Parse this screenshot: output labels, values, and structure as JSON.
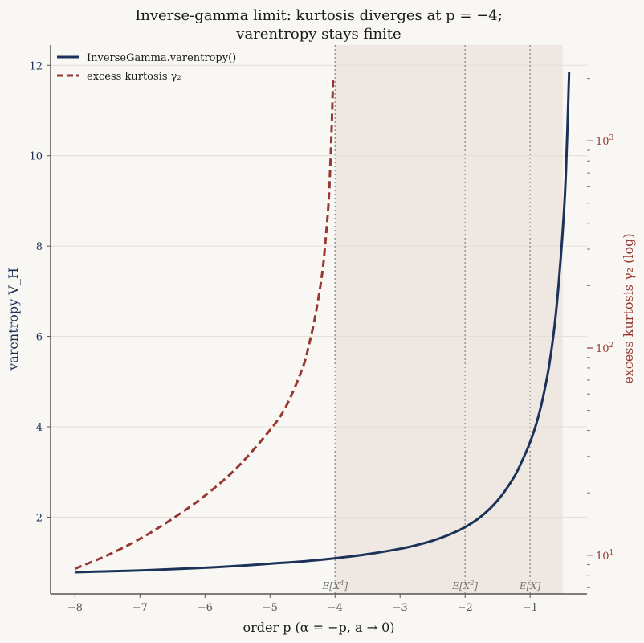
{
  "chart_data": {
    "type": "line",
    "title_line1": "Inverse-gamma limit: kurtosis diverges at p = −4;",
    "title_line2": "varentropy stays finite",
    "xlabel": "order p   (α = −p,   a → 0)",
    "ylabel_left": "varentropy V_H",
    "ylabel_right": "excess kurtosis γ₂  (log)",
    "xlim": [
      -8.375,
      -0.125
    ],
    "ylim_left": [
      0.3,
      12.45
    ],
    "ylim_right_log": [
      6.5,
      2900
    ],
    "x_ticks": [
      -8,
      -7,
      -6,
      -5,
      -4,
      -3,
      -2,
      -1
    ],
    "x_tick_labels": [
      "−8",
      "−7",
      "−6",
      "−5",
      "−4",
      "−3",
      "−2",
      "−1"
    ],
    "y_left_ticks": [
      2,
      4,
      6,
      8,
      10,
      12
    ],
    "y_left_tick_labels": [
      "2",
      "4",
      "6",
      "8",
      "10",
      "12"
    ],
    "y_right_major_ticks": [
      10,
      100,
      1000
    ],
    "y_right_major_labels_base": [
      "10",
      "10",
      "10"
    ],
    "y_right_major_labels_exp": [
      "1",
      "2",
      "3"
    ],
    "shaded_region": {
      "x_from": -4,
      "x_to": -0.5,
      "color": "#d9bfb5"
    },
    "vlines": [
      {
        "x": -4,
        "label_base": "E[X",
        "label_exp": "4",
        "label_end": "]"
      },
      {
        "x": -2,
        "label_base": "E[X",
        "label_exp": "2",
        "label_end": "]"
      },
      {
        "x": -1,
        "label_base": "E[X",
        "label_exp": "",
        "label_end": "]"
      }
    ],
    "grid": true,
    "legend_position": "top-left",
    "series": [
      {
        "name": "InverseGamma.varentropy()",
        "axis": "left",
        "style": "solid",
        "color": "#1c3359",
        "x": [
          -8,
          -7.5,
          -7,
          -6.5,
          -6,
          -5.5,
          -5,
          -4.5,
          -4,
          -3.5,
          -3,
          -2.75,
          -2.5,
          -2.25,
          -2,
          -1.75,
          -1.5,
          -1.25,
          -1.1,
          -1,
          -0.9,
          -0.8,
          -0.7,
          -0.6,
          -0.5,
          -0.45,
          -0.4
        ],
        "y": [
          0.78,
          0.8,
          0.82,
          0.85,
          0.88,
          0.92,
          0.97,
          1.02,
          1.09,
          1.18,
          1.3,
          1.38,
          1.48,
          1.61,
          1.78,
          2.02,
          2.37,
          2.88,
          3.32,
          3.66,
          4.09,
          4.66,
          5.42,
          6.55,
          8.3,
          9.6,
          11.85
        ]
      },
      {
        "name": "excess kurtosis γ₂",
        "axis": "right",
        "style": "dashed",
        "color": "#963732",
        "x": [
          -8,
          -7.5,
          -7,
          -6.5,
          -6,
          -5.5,
          -5,
          -4.75,
          -4.5,
          -4.4,
          -4.3,
          -4.2,
          -4.15,
          -4.1,
          -4.07,
          -4.05,
          -4.03
        ],
        "y": [
          8.6,
          10.0,
          12.0,
          15.0,
          19.4,
          26.6,
          40.2,
          52.5,
          80.0,
          104,
          145,
          226,
          320,
          500,
          800,
          1200,
          2000
        ]
      }
    ]
  },
  "colors": {
    "background": "#f9f7f4",
    "axis": "#555555",
    "left_axis_text": "#1c3359",
    "right_axis_text": "#963732",
    "grid": "#e4dcd7",
    "vline": "#8a8a8a"
  }
}
